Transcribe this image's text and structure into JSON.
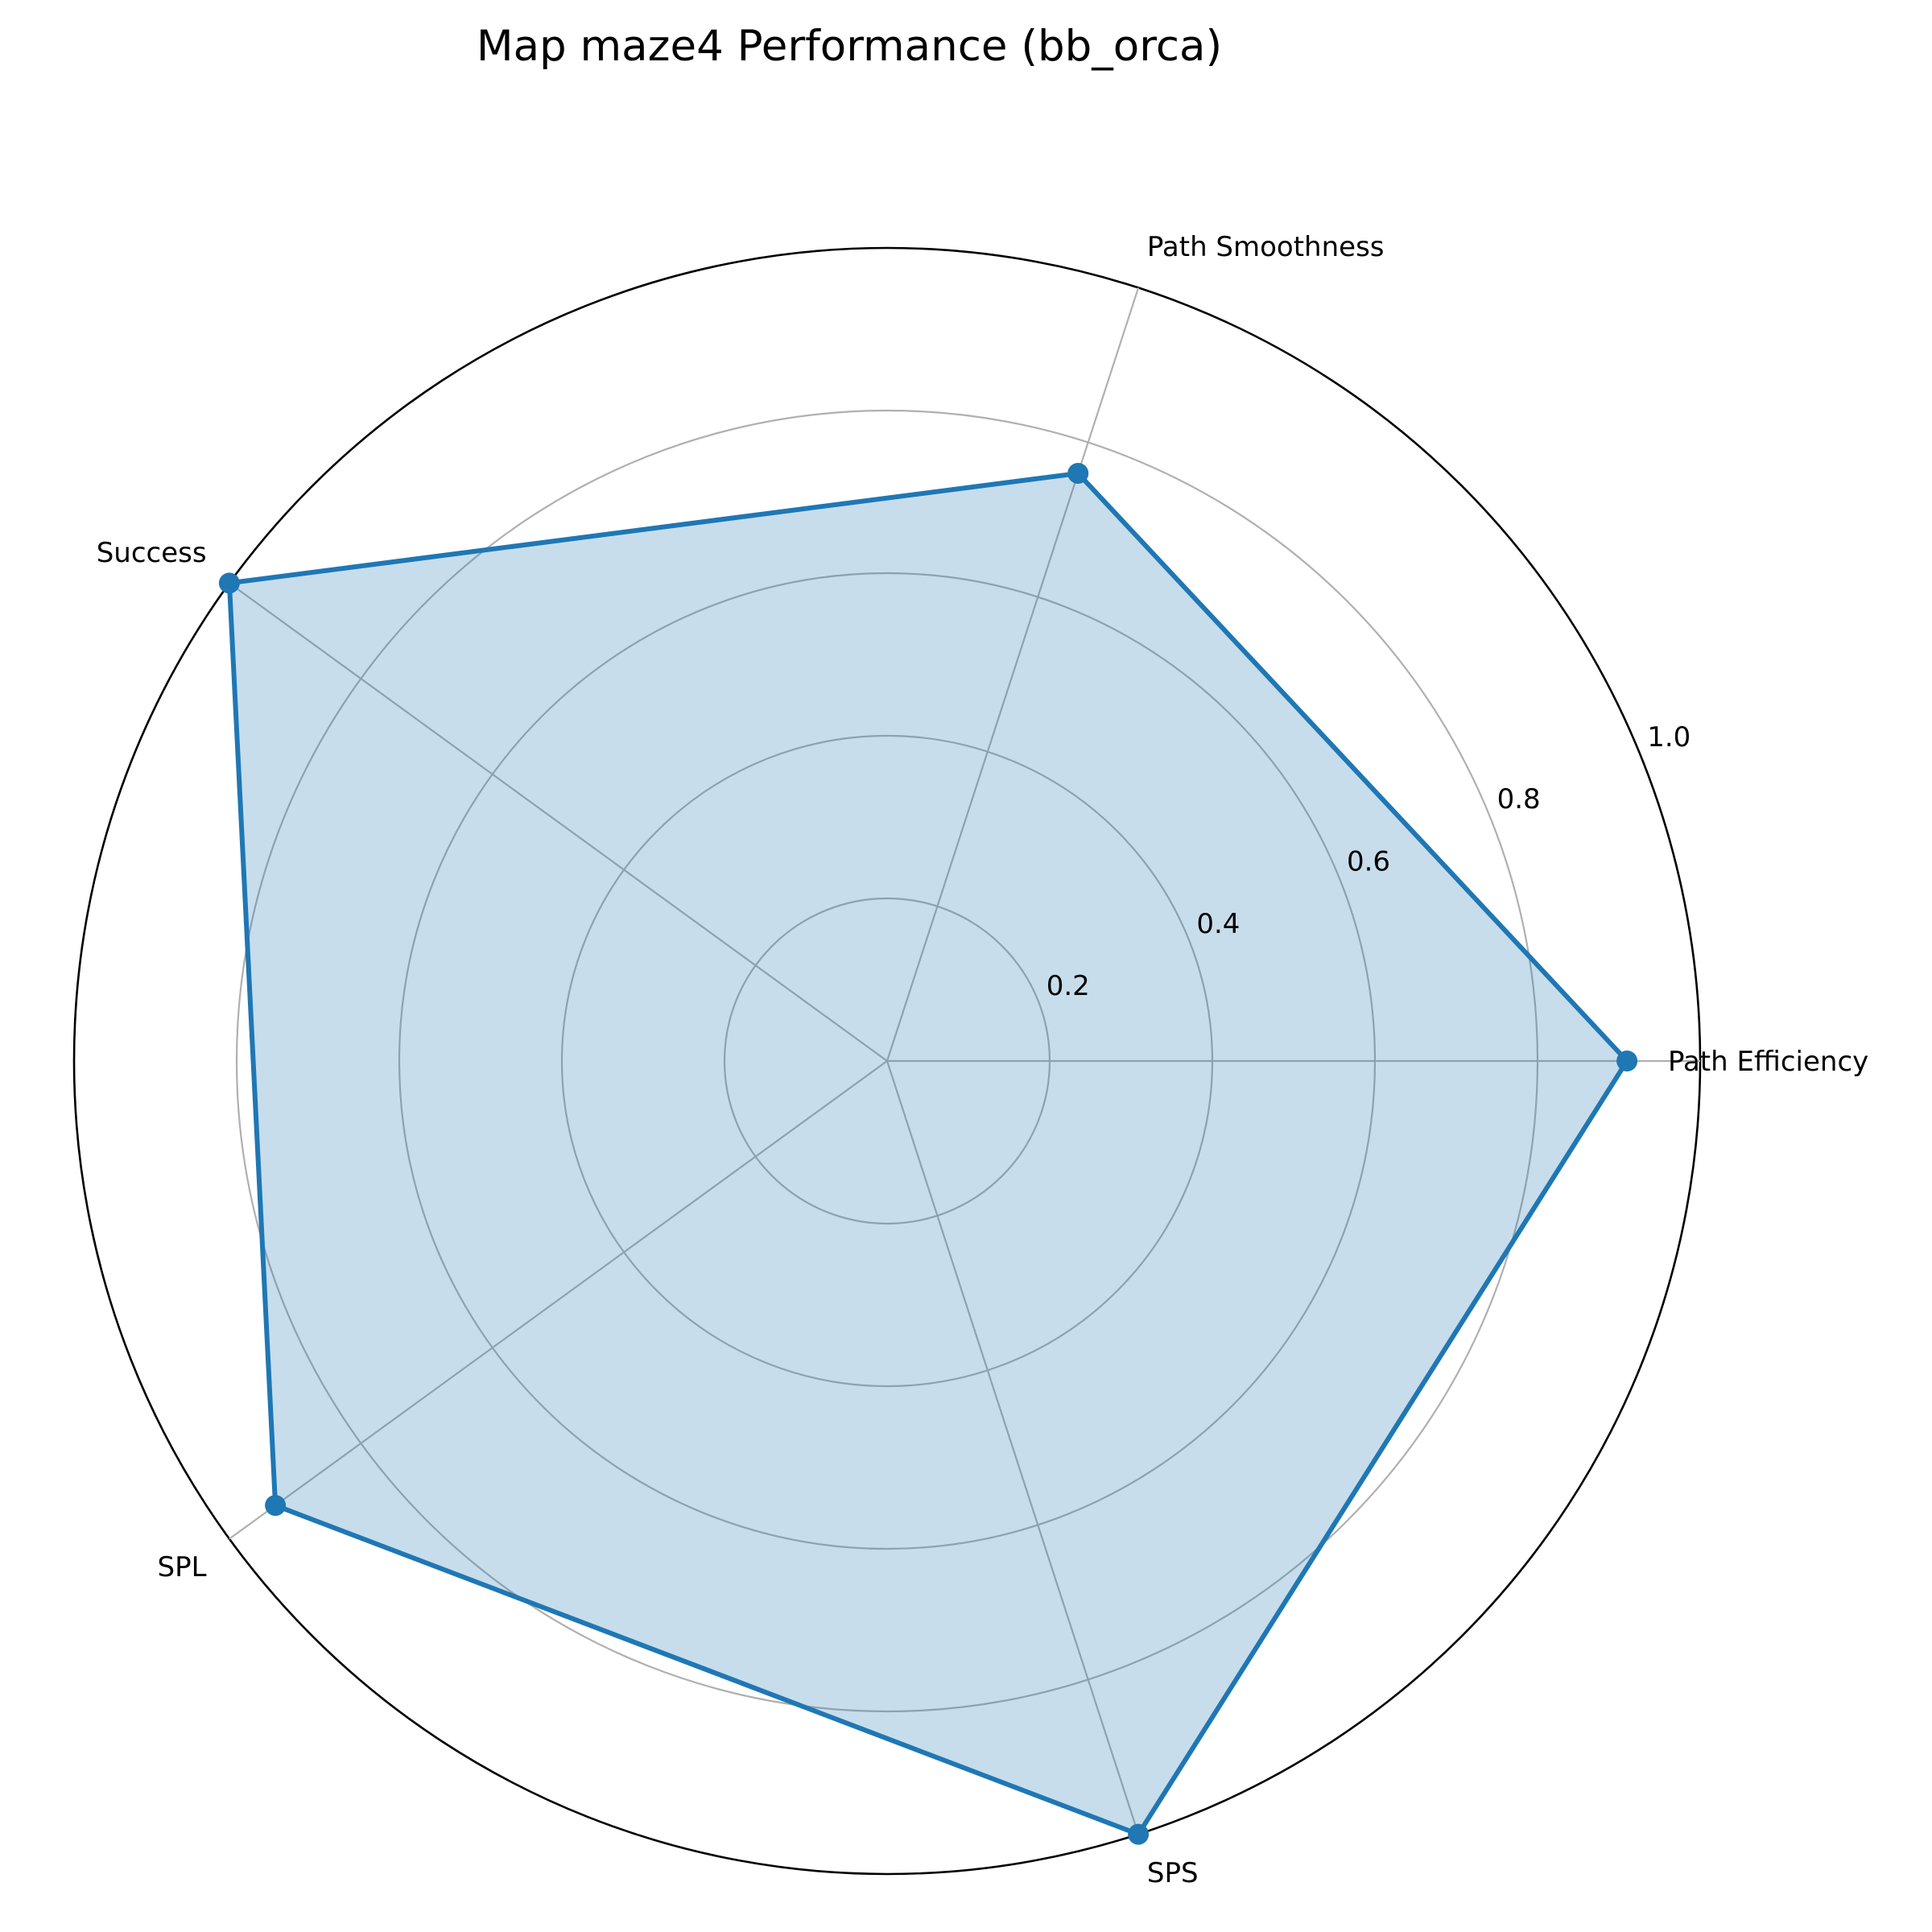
{
  "chart_data": {
    "type": "radar",
    "title": "Map maze4 Performance (bb_orca)",
    "axes": [
      "Path Efficiency",
      "Path Smoothness",
      "Success",
      "SPL",
      "SPS"
    ],
    "series": [
      {
        "values": [
          0.91,
          0.76,
          1.0,
          0.93,
          1.0
        ]
      }
    ],
    "rlim": [
      0,
      1.0
    ],
    "r_ticks": [
      0.2,
      0.4,
      0.6,
      0.8,
      1.0
    ],
    "r_tick_labels": [
      "0.2",
      "0.4",
      "0.6",
      "0.8",
      "1.0"
    ],
    "grid": true,
    "colors": {
      "line": "#1f77b4",
      "fill": "#1f77b4",
      "grid": "#b0b0b0",
      "frame": "#000000"
    }
  }
}
